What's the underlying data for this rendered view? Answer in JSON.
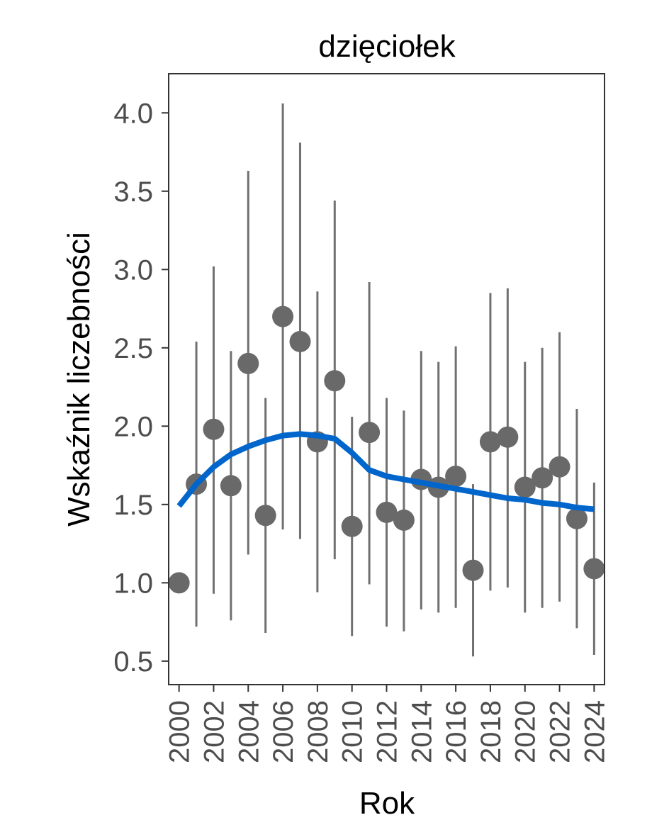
{
  "chart_data": {
    "type": "scatter",
    "title": "dzięciołek",
    "xlabel": "Rok",
    "ylabel": "Wskaźnik liczebności",
    "xlim": [
      1999.4,
      2024.6
    ],
    "ylim": [
      0.35,
      4.25
    ],
    "x_ticks": [
      "2000",
      "2002",
      "2004",
      "2006",
      "2008",
      "2010",
      "2012",
      "2014",
      "2016",
      "2018",
      "2020",
      "2022",
      "2024"
    ],
    "y_ticks": [
      "0.5",
      "1.0",
      "1.5",
      "2.0",
      "2.5",
      "3.0",
      "3.5",
      "4.0"
    ],
    "grid": false,
    "legend": "none",
    "colors": {
      "points": "#696969",
      "error_bars": "#707070",
      "trend": "#0066cc",
      "frame": "#333333"
    },
    "points": [
      {
        "year": 2000,
        "value": 1.0,
        "lower": null,
        "upper": null
      },
      {
        "year": 2001,
        "value": 1.63,
        "lower": 0.72,
        "upper": 2.54
      },
      {
        "year": 2002,
        "value": 1.98,
        "lower": 0.93,
        "upper": 3.02
      },
      {
        "year": 2003,
        "value": 1.62,
        "lower": 0.76,
        "upper": 2.48
      },
      {
        "year": 2004,
        "value": 2.4,
        "lower": 1.18,
        "upper": 3.63
      },
      {
        "year": 2005,
        "value": 1.43,
        "lower": 0.68,
        "upper": 2.18
      },
      {
        "year": 2006,
        "value": 2.7,
        "lower": 1.34,
        "upper": 4.06
      },
      {
        "year": 2007,
        "value": 2.54,
        "lower": 1.28,
        "upper": 3.81
      },
      {
        "year": 2008,
        "value": 1.9,
        "lower": 0.94,
        "upper": 2.86
      },
      {
        "year": 2009,
        "value": 2.29,
        "lower": 1.15,
        "upper": 3.44
      },
      {
        "year": 2010,
        "value": 1.36,
        "lower": 0.66,
        "upper": 2.06
      },
      {
        "year": 2011,
        "value": 1.96,
        "lower": 0.99,
        "upper": 2.92
      },
      {
        "year": 2012,
        "value": 1.45,
        "lower": 0.72,
        "upper": 2.18
      },
      {
        "year": 2013,
        "value": 1.4,
        "lower": 0.69,
        "upper": 2.1
      },
      {
        "year": 2014,
        "value": 1.66,
        "lower": 0.83,
        "upper": 2.48
      },
      {
        "year": 2015,
        "value": 1.61,
        "lower": 0.81,
        "upper": 2.41
      },
      {
        "year": 2016,
        "value": 1.68,
        "lower": 0.84,
        "upper": 2.51
      },
      {
        "year": 2017,
        "value": 1.08,
        "lower": 0.53,
        "upper": 1.63
      },
      {
        "year": 2018,
        "value": 1.9,
        "lower": 0.95,
        "upper": 2.85
      },
      {
        "year": 2019,
        "value": 1.93,
        "lower": 0.97,
        "upper": 2.88
      },
      {
        "year": 2020,
        "value": 1.61,
        "lower": 0.81,
        "upper": 2.41
      },
      {
        "year": 2021,
        "value": 1.67,
        "lower": 0.84,
        "upper": 2.5
      },
      {
        "year": 2022,
        "value": 1.74,
        "lower": 0.88,
        "upper": 2.6
      },
      {
        "year": 2023,
        "value": 1.41,
        "lower": 0.71,
        "upper": 2.11
      },
      {
        "year": 2024,
        "value": 1.09,
        "lower": 0.54,
        "upper": 1.64
      }
    ],
    "trend": {
      "x": [
        2000,
        2001,
        2002,
        2003,
        2004,
        2005,
        2006,
        2007,
        2008,
        2009,
        2010,
        2011,
        2012,
        2013,
        2014,
        2015,
        2016,
        2017,
        2018,
        2019,
        2020,
        2021,
        2022,
        2023,
        2024
      ],
      "y": [
        1.49,
        1.63,
        1.74,
        1.82,
        1.87,
        1.91,
        1.94,
        1.95,
        1.94,
        1.92,
        1.83,
        1.72,
        1.68,
        1.66,
        1.64,
        1.62,
        1.6,
        1.58,
        1.56,
        1.54,
        1.53,
        1.51,
        1.5,
        1.48,
        1.47
      ]
    }
  }
}
